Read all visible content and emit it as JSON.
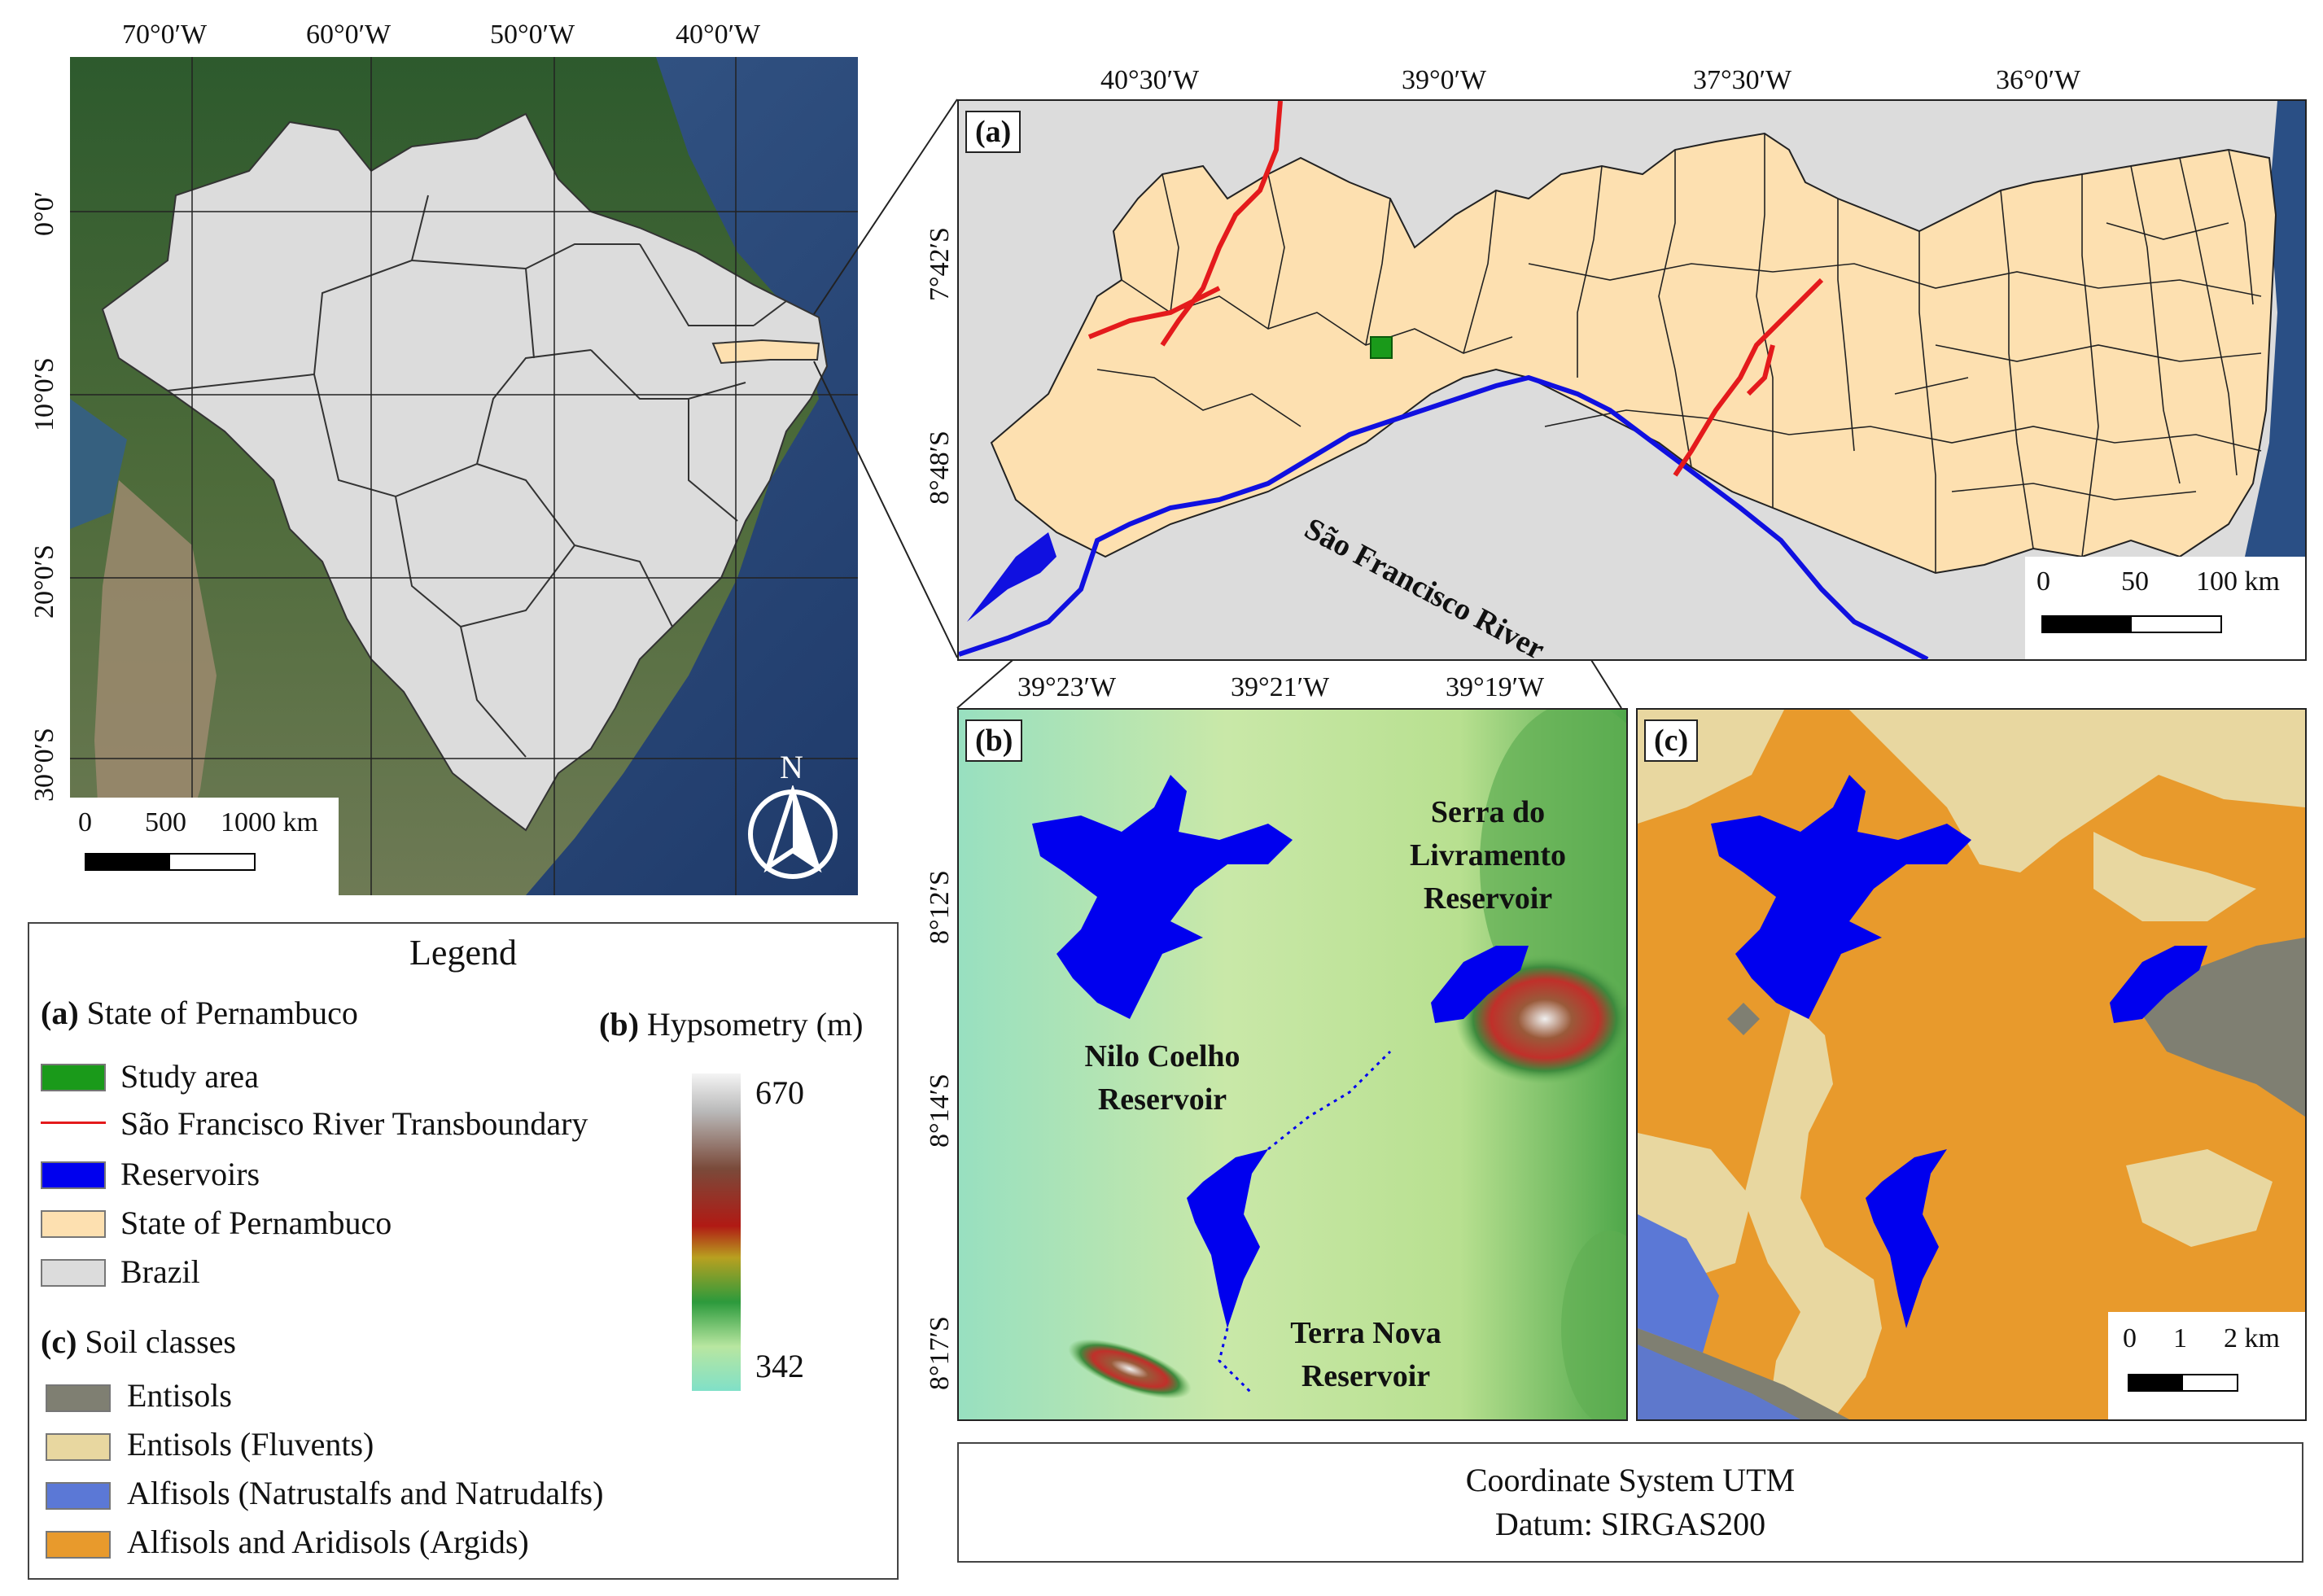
{
  "overview": {
    "lon_ticks": [
      "70°0′W",
      "60°0′W",
      "50°0′W",
      "40°0′W"
    ],
    "lat_ticks": [
      "0°0′",
      "10°0′S",
      "20°0′S",
      "30°0′S"
    ],
    "scale": {
      "labels": [
        "0",
        "500",
        "1000 km"
      ]
    },
    "north_label": "N"
  },
  "panel_a": {
    "label": "(a)",
    "lon_ticks": [
      "40°30′W",
      "39°0′W",
      "37°30′W",
      "36°0′W"
    ],
    "lat_ticks": [
      "7°42′S",
      "8°48′S"
    ],
    "river_label": "São Francisco River",
    "scale": {
      "labels": [
        "0",
        "50",
        "100 km"
      ]
    }
  },
  "panel_b": {
    "label": "(b)",
    "lon_ticks": [
      "39°23′W",
      "39°21′W",
      "39°19′W"
    ],
    "lat_ticks": [
      "8°12′S",
      "8°14′S",
      "8°17′S"
    ],
    "reservoir_labels": {
      "serra": [
        "Serra do",
        "Livramento",
        "Reservoir"
      ],
      "nilo": [
        "Nilo Coelho",
        "Reservoir"
      ],
      "terra": [
        "Terra Nova",
        "Reservoir"
      ]
    }
  },
  "panel_c": {
    "label": "(c)",
    "scale": {
      "labels": [
        "0",
        "1",
        "2 km"
      ]
    }
  },
  "legend": {
    "title": "Legend",
    "section_a_key": "(a)",
    "section_a_text": "State of Pernambuco",
    "section_b_key": "(b)",
    "section_b_text": "Hypsometry (m)",
    "section_c_key": "(c)",
    "section_c_text": "Soil classes",
    "items_a": [
      {
        "label": "Study area",
        "color": "#1a9a1a",
        "kind": "box"
      },
      {
        "label": "São Francisco River Transboundary",
        "color": "#e41a1c",
        "kind": "line"
      },
      {
        "label": "Reservoirs",
        "color": "#0000ee",
        "kind": "box"
      },
      {
        "label": "State of Pernambuco",
        "color": "#fde0b0",
        "kind": "box"
      },
      {
        "label": "Brazil",
        "color": "#dcdcdc",
        "kind": "box"
      }
    ],
    "hypsometry": {
      "max": "670",
      "min": "342"
    },
    "items_c": [
      {
        "label": "Entisols",
        "color": "#7f7f72"
      },
      {
        "label": "Entisols (Fluvents)",
        "color": "#e8d7a0"
      },
      {
        "label": "Alfisols (Natrustalfs and Natrudalfs)",
        "color": "#5b78d6"
      },
      {
        "label": "Alfisols and Aridisols (Argids)",
        "color": "#e89a2c"
      }
    ]
  },
  "coordinate_system": {
    "line1": "Coordinate System UTM",
    "line2": "Datum: SIRGAS200"
  }
}
